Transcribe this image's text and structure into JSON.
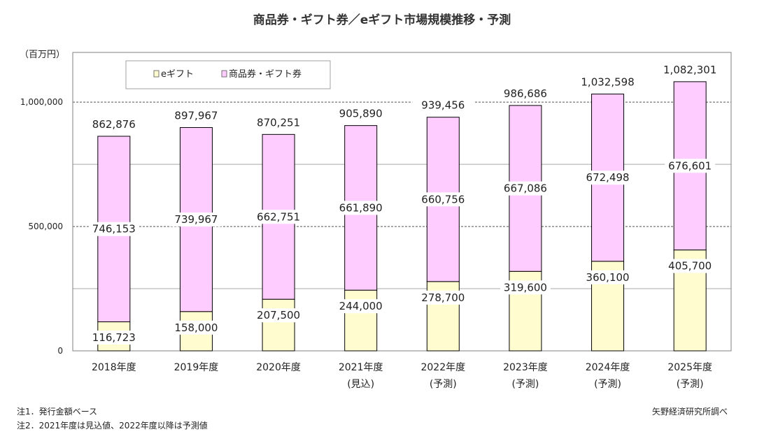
{
  "chart_data": {
    "type": "bar",
    "stacked": true,
    "title": "商品券・ギフト券／eギフト市場規模推移・予測",
    "unit_label": "（百万円）",
    "categories": [
      "2018年度",
      "2019年度",
      "2020年度",
      "2021年度",
      "2022年度",
      "2023年度",
      "2024年度",
      "2025年度"
    ],
    "category_sublabels": [
      "",
      "",
      "",
      "(見込)",
      "(予測)",
      "(予測)",
      "(予測)",
      "(予測)"
    ],
    "series": [
      {
        "name": "eギフト",
        "color": "#fffdd0",
        "values": [
          116723,
          158000,
          207500,
          244000,
          278700,
          319600,
          360100,
          405700
        ]
      },
      {
        "name": "商品券・ギフト券",
        "color": "#ffccff",
        "values": [
          746153,
          739967,
          662751,
          661890,
          660756,
          667086,
          672498,
          676601
        ]
      }
    ],
    "totals": [
      862876,
      897967,
      870251,
      905890,
      939456,
      986686,
      1032598,
      1082301
    ],
    "value_labels": {
      "egift": [
        "116,723",
        "158,000",
        "207,500",
        "244,000",
        "278,700",
        "319,600",
        "360,100",
        "405,700"
      ],
      "gift": [
        "746,153",
        "739,967",
        "662,751",
        "661,890",
        "660,756",
        "667,086",
        "672,498",
        "676,601"
      ],
      "totals": [
        "862,876",
        "897,967",
        "870,251",
        "905,890",
        "939,456",
        "986,686",
        "1,032,598",
        "1,082,301"
      ]
    },
    "ylim": [
      0,
      1200000
    ],
    "yticks": [
      0,
      500000,
      1000000
    ],
    "ytick_labels": [
      "0",
      "500,000",
      "1,000,000"
    ],
    "grid_values": [
      250000,
      500000,
      750000,
      1000000
    ],
    "legend_position": "top-left inside plot",
    "xlabel": "",
    "ylabel": ""
  },
  "notes": {
    "note1": "注1．発行金額ベース",
    "note2": "注2．2021年度は見込値、2022年度以降は予測値",
    "source": "矢野経済研究所調べ"
  }
}
